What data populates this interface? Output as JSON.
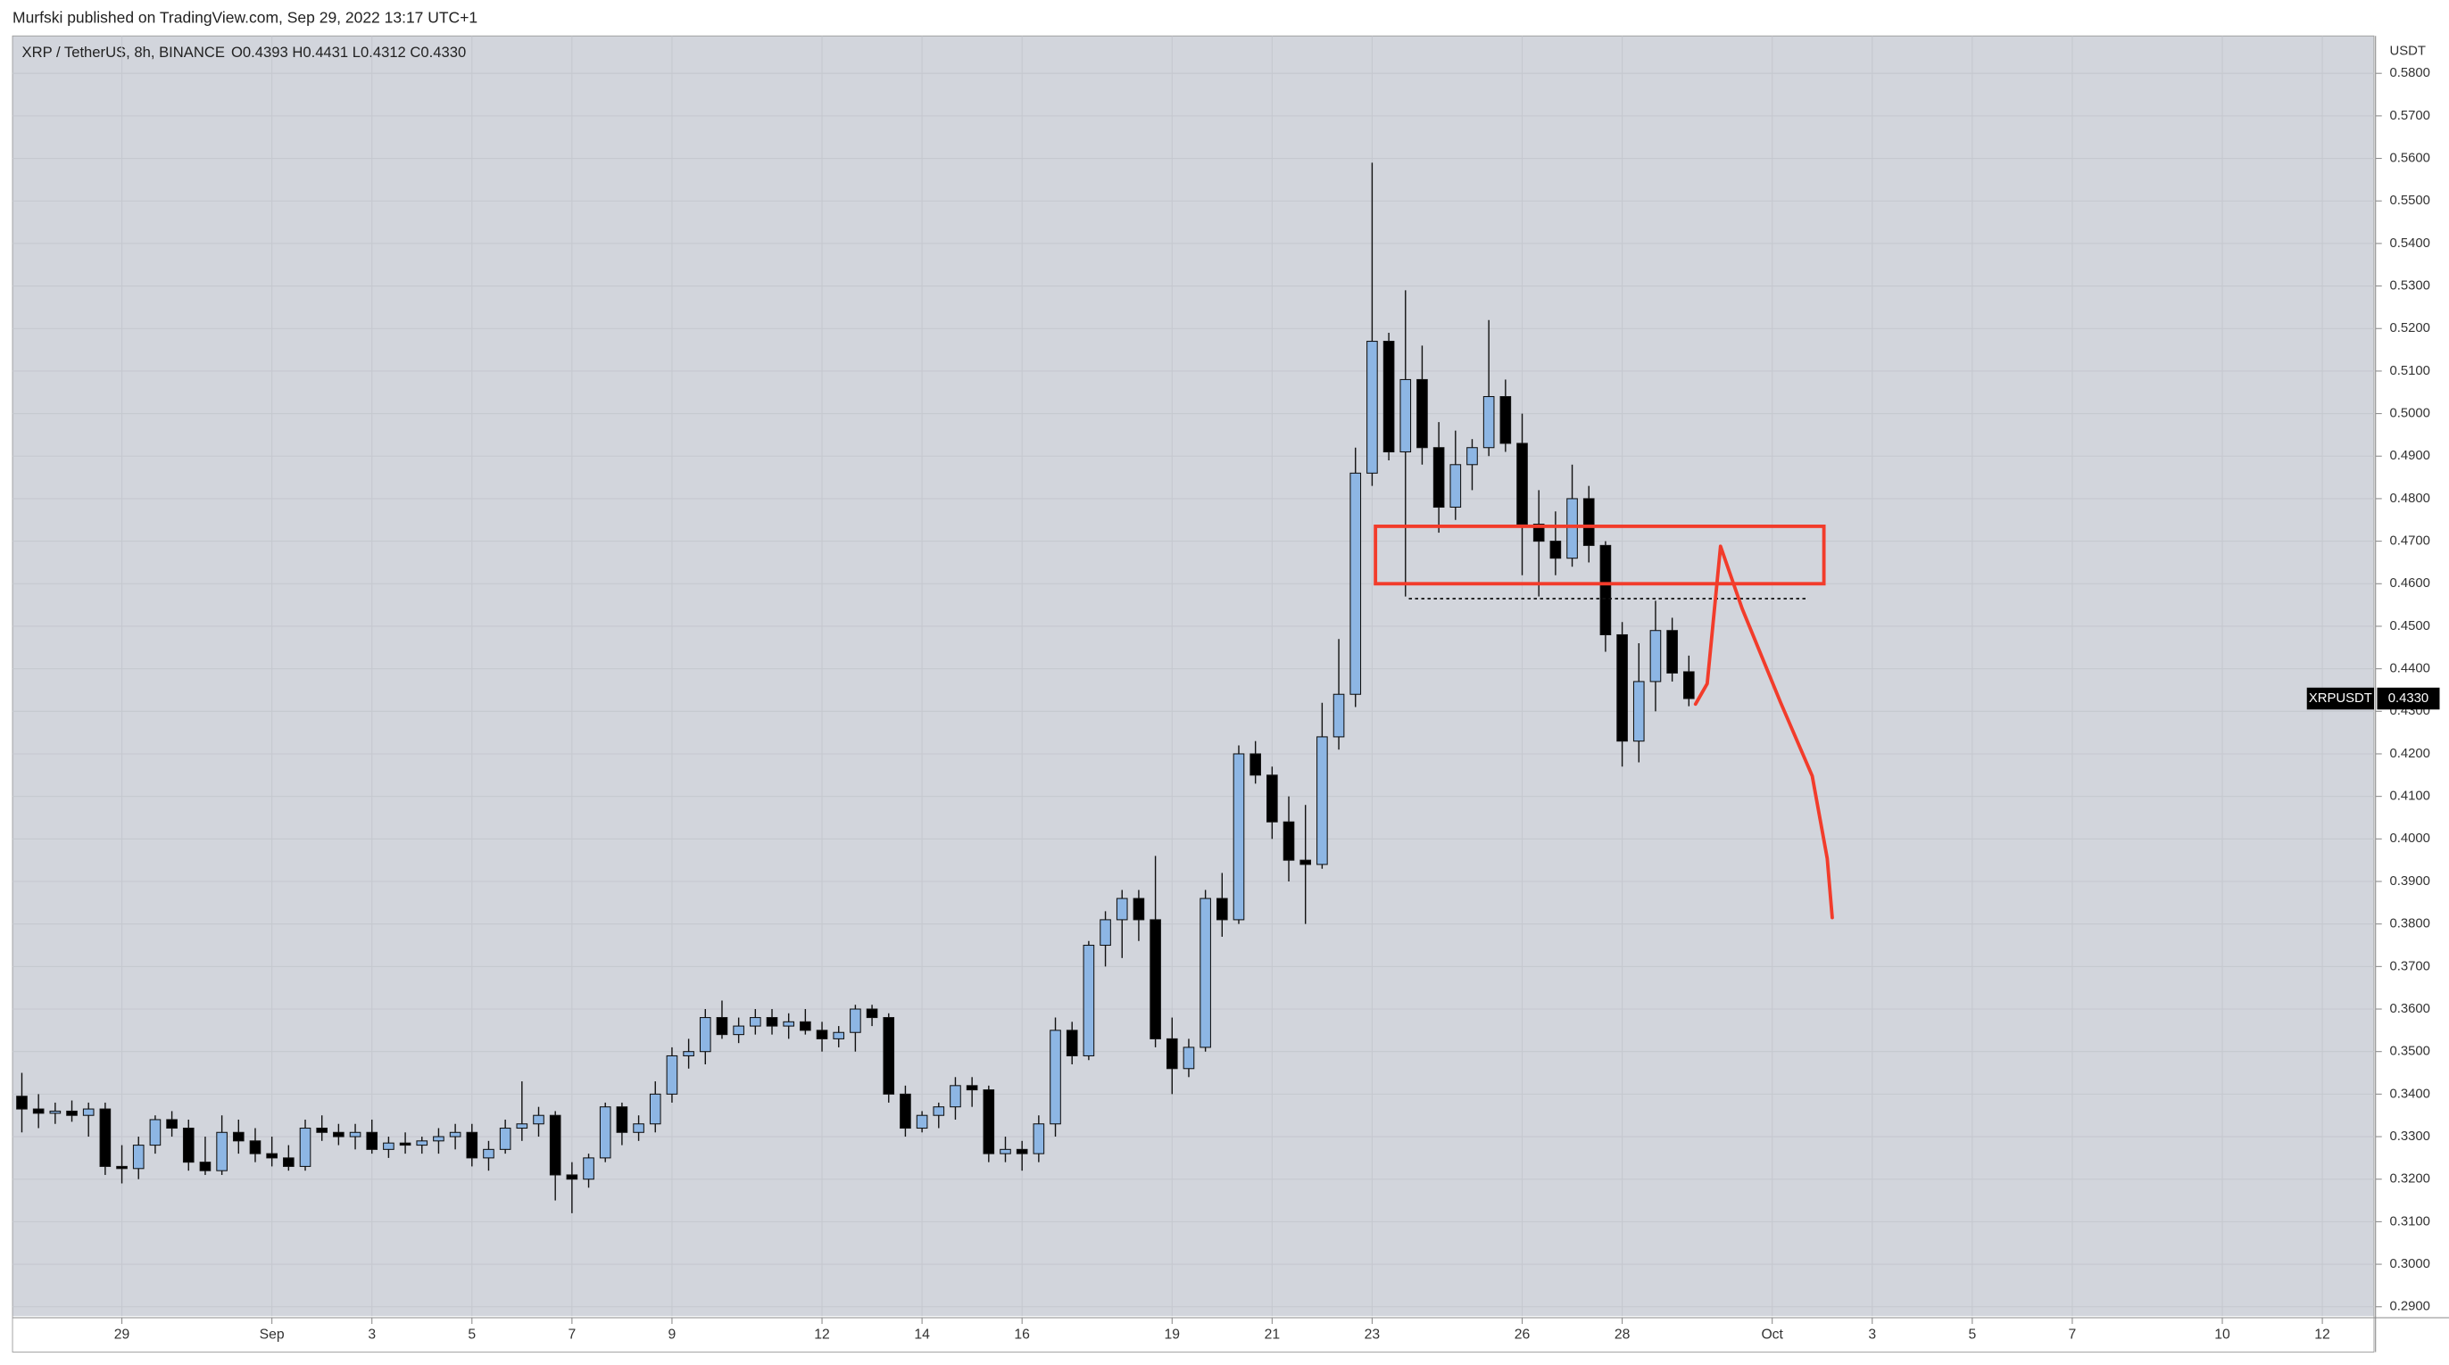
{
  "chart_data": {
    "type": "candlestick",
    "title": "Murfski published on TradingView.com, Sep 29, 2022 13:17 UTC+1",
    "symbol_line": "XRP / TetherUS, 8h, BINANCE",
    "ohlc_line": "O0.4393 H0.4431 L0.4312 C0.4330",
    "y_axis_label": "USDT",
    "up_color": "#8db6e4",
    "down_color": "#000000",
    "series": [
      {
        "name": "XRPUSDT",
        "open": [
          0.3395,
          0.3365,
          0.3355,
          0.336,
          0.335,
          0.3365,
          0.323,
          0.3225,
          0.328,
          0.334,
          0.332,
          0.324,
          0.322,
          0.331,
          0.329,
          0.326,
          0.325,
          0.323,
          0.332,
          0.331,
          0.33,
          0.331,
          0.327,
          0.3285,
          0.328,
          0.329,
          0.33,
          0.331,
          0.325,
          0.327,
          0.332,
          0.333,
          0.335,
          0.321,
          0.32,
          0.325,
          0.337,
          0.331,
          0.333,
          0.34,
          0.349,
          0.35,
          0.358,
          0.354,
          0.356,
          0.358,
          0.356,
          0.357,
          0.355,
          0.353,
          0.3545,
          0.36,
          0.358,
          0.34,
          0.332,
          0.335,
          0.337,
          0.342,
          0.341,
          0.326,
          0.327,
          0.326,
          0.333,
          0.355,
          0.349,
          0.375,
          0.381,
          0.386,
          0.381,
          0.353,
          0.346,
          0.351,
          0.386,
          0.381,
          0.42,
          0.415,
          0.404,
          0.395,
          0.394,
          0.424,
          0.434,
          0.486,
          0.517,
          0.491,
          0.508,
          0.492,
          0.478,
          0.488,
          0.492,
          0.504,
          0.493,
          0.474,
          0.47,
          0.466,
          0.48,
          0.469,
          0.448,
          0.423,
          0.437,
          0.449,
          0.4393
        ],
        "high": [
          0.345,
          0.34,
          0.338,
          0.3385,
          0.338,
          0.338,
          0.328,
          0.33,
          0.335,
          0.336,
          0.334,
          0.33,
          0.335,
          0.334,
          0.332,
          0.33,
          0.328,
          0.334,
          0.335,
          0.333,
          0.333,
          0.334,
          0.33,
          0.331,
          0.33,
          0.332,
          0.333,
          0.333,
          0.329,
          0.334,
          0.343,
          0.337,
          0.336,
          0.324,
          0.326,
          0.338,
          0.338,
          0.335,
          0.343,
          0.351,
          0.353,
          0.36,
          0.362,
          0.358,
          0.36,
          0.36,
          0.359,
          0.36,
          0.357,
          0.356,
          0.361,
          0.361,
          0.359,
          0.342,
          0.336,
          0.338,
          0.344,
          0.344,
          0.342,
          0.33,
          0.329,
          0.335,
          0.358,
          0.357,
          0.376,
          0.383,
          0.388,
          0.388,
          0.396,
          0.358,
          0.353,
          0.388,
          0.392,
          0.422,
          0.423,
          0.417,
          0.41,
          0.408,
          0.432,
          0.447,
          0.492,
          0.559,
          0.519,
          0.529,
          0.516,
          0.498,
          0.496,
          0.494,
          0.522,
          0.508,
          0.5,
          0.482,
          0.477,
          0.488,
          0.483,
          0.47,
          0.451,
          0.446,
          0.456,
          0.452,
          0.4431
        ],
        "low": [
          0.331,
          0.332,
          0.333,
          0.3335,
          0.33,
          0.321,
          0.319,
          0.32,
          0.326,
          0.33,
          0.322,
          0.321,
          0.321,
          0.326,
          0.324,
          0.323,
          0.322,
          0.322,
          0.329,
          0.328,
          0.327,
          0.326,
          0.325,
          0.326,
          0.326,
          0.326,
          0.327,
          0.323,
          0.322,
          0.326,
          0.329,
          0.33,
          0.315,
          0.312,
          0.318,
          0.324,
          0.328,
          0.329,
          0.331,
          0.338,
          0.346,
          0.347,
          0.353,
          0.352,
          0.354,
          0.354,
          0.353,
          0.354,
          0.35,
          0.351,
          0.35,
          0.356,
          0.338,
          0.33,
          0.331,
          0.332,
          0.334,
          0.337,
          0.324,
          0.324,
          0.322,
          0.324,
          0.33,
          0.347,
          0.348,
          0.37,
          0.372,
          0.376,
          0.351,
          0.34,
          0.344,
          0.35,
          0.377,
          0.38,
          0.413,
          0.4,
          0.39,
          0.38,
          0.393,
          0.421,
          0.431,
          0.483,
          0.489,
          0.457,
          0.488,
          0.472,
          0.475,
          0.482,
          0.49,
          0.491,
          0.462,
          0.457,
          0.462,
          0.464,
          0.465,
          0.444,
          0.417,
          0.418,
          0.43,
          0.437,
          0.4312
        ],
        "close": [
          0.3365,
          0.3355,
          0.336,
          0.335,
          0.3365,
          0.323,
          0.3225,
          0.328,
          0.334,
          0.332,
          0.324,
          0.322,
          0.331,
          0.329,
          0.326,
          0.325,
          0.323,
          0.332,
          0.331,
          0.33,
          0.331,
          0.327,
          0.3285,
          0.328,
          0.329,
          0.33,
          0.331,
          0.325,
          0.327,
          0.332,
          0.333,
          0.335,
          0.321,
          0.32,
          0.325,
          0.337,
          0.331,
          0.333,
          0.34,
          0.349,
          0.35,
          0.358,
          0.354,
          0.356,
          0.358,
          0.356,
          0.357,
          0.355,
          0.353,
          0.3545,
          0.36,
          0.358,
          0.34,
          0.332,
          0.335,
          0.337,
          0.342,
          0.341,
          0.326,
          0.327,
          0.326,
          0.333,
          0.355,
          0.349,
          0.375,
          0.381,
          0.386,
          0.381,
          0.353,
          0.346,
          0.351,
          0.386,
          0.381,
          0.42,
          0.415,
          0.404,
          0.395,
          0.394,
          0.424,
          0.434,
          0.486,
          0.517,
          0.491,
          0.508,
          0.492,
          0.478,
          0.488,
          0.492,
          0.504,
          0.493,
          0.474,
          0.47,
          0.466,
          0.48,
          0.469,
          0.448,
          0.423,
          0.437,
          0.449,
          0.439,
          0.433
        ]
      }
    ],
    "last_price": {
      "name": "XRPUSDT",
      "value": 0.433,
      "label": "0.4330"
    },
    "xlim": [
      -0.56,
      141.1
    ],
    "ylim": [
      0.2878,
      0.5888
    ],
    "xticks": [
      {
        "value": 6,
        "label": "29"
      },
      {
        "value": 15,
        "label": "Sep"
      },
      {
        "value": 21,
        "label": "3"
      },
      {
        "value": 27,
        "label": "5"
      },
      {
        "value": 33,
        "label": "7"
      },
      {
        "value": 39,
        "label": "9"
      },
      {
        "value": 48,
        "label": "12"
      },
      {
        "value": 54,
        "label": "14"
      },
      {
        "value": 60,
        "label": "16"
      },
      {
        "value": 69,
        "label": "19"
      },
      {
        "value": 75,
        "label": "21"
      },
      {
        "value": 81,
        "label": "23"
      },
      {
        "value": 90,
        "label": "26"
      },
      {
        "value": 96,
        "label": "28"
      },
      {
        "value": 105,
        "label": "Oct"
      },
      {
        "value": 111,
        "label": "3"
      },
      {
        "value": 117,
        "label": "5"
      },
      {
        "value": 123,
        "label": "7"
      },
      {
        "value": 132,
        "label": "10"
      },
      {
        "value": 138,
        "label": "12"
      }
    ],
    "yticks": [
      {
        "value": 0.29,
        "label": "0.2900"
      },
      {
        "value": 0.3,
        "label": "0.3000"
      },
      {
        "value": 0.31,
        "label": "0.3100"
      },
      {
        "value": 0.32,
        "label": "0.3200"
      },
      {
        "value": 0.33,
        "label": "0.3300"
      },
      {
        "value": 0.34,
        "label": "0.3400"
      },
      {
        "value": 0.35,
        "label": "0.3500"
      },
      {
        "value": 0.36,
        "label": "0.3600"
      },
      {
        "value": 0.37,
        "label": "0.3700"
      },
      {
        "value": 0.38,
        "label": "0.3800"
      },
      {
        "value": 0.39,
        "label": "0.3900"
      },
      {
        "value": 0.4,
        "label": "0.4000"
      },
      {
        "value": 0.41,
        "label": "0.4100"
      },
      {
        "value": 0.42,
        "label": "0.4200"
      },
      {
        "value": 0.43,
        "label": "0.4300"
      },
      {
        "value": 0.44,
        "label": "0.4400"
      },
      {
        "value": 0.45,
        "label": "0.4500"
      },
      {
        "value": 0.46,
        "label": "0.4600"
      },
      {
        "value": 0.47,
        "label": "0.4700"
      },
      {
        "value": 0.48,
        "label": "0.4800"
      },
      {
        "value": 0.49,
        "label": "0.4900"
      },
      {
        "value": 0.5,
        "label": "0.5000"
      },
      {
        "value": 0.51,
        "label": "0.5100"
      },
      {
        "value": 0.52,
        "label": "0.5200"
      },
      {
        "value": 0.53,
        "label": "0.5300"
      },
      {
        "value": 0.54,
        "label": "0.5400"
      },
      {
        "value": 0.55,
        "label": "0.5500"
      },
      {
        "value": 0.56,
        "label": "0.5600"
      },
      {
        "value": 0.57,
        "label": "0.5700"
      },
      {
        "value": 0.58,
        "label": "0.5800"
      }
    ],
    "grid": true,
    "annotations": {
      "color": "#f23c2b",
      "zone": {
        "x0": 81.2,
        "x1": 108.1,
        "y0": 0.46,
        "y1": 0.4735
      },
      "level": {
        "x0": 83.2,
        "x1": 107.1,
        "y": 0.4565
      },
      "projection": {
        "x": [
          100.4,
          101.1,
          101.9,
          103.2,
          105.5,
          107.4,
          108.3,
          108.6
        ],
        "y": [
          0.4317,
          0.4365,
          0.4688,
          0.4541,
          0.4321,
          0.4148,
          0.3954,
          0.3815
        ]
      }
    }
  }
}
